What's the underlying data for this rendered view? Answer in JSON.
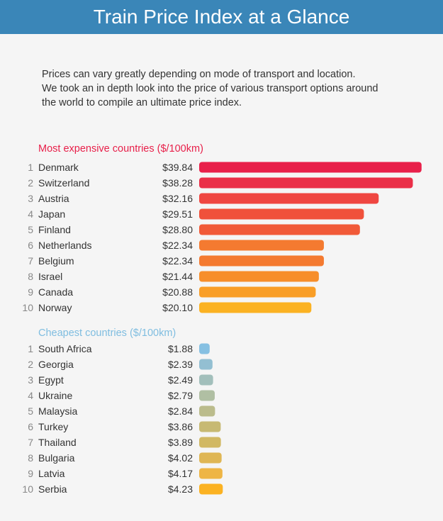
{
  "header": {
    "title": "Train Price Index at a Glance"
  },
  "intro": {
    "line1": "Prices can vary greatly depending on mode of transport and location.",
    "line2": "We took an in depth look into the price of various transport options around",
    "line3": "the world to compile an ultimate price index."
  },
  "chart_data": [
    {
      "type": "bar",
      "orientation": "horizontal",
      "title": "Most expensive countries ($/100km)",
      "title_color": "#e8204a",
      "categories": [
        "Denmark",
        "Switzerland",
        "Austria",
        "Japan",
        "Finland",
        "Netherlands",
        "Belgium",
        "Israel",
        "Canada",
        "Norway"
      ],
      "ranks": [
        "1",
        "2",
        "3",
        "4",
        "5",
        "6",
        "7",
        "8",
        "9",
        "10"
      ],
      "values": [
        39.84,
        38.28,
        32.16,
        29.51,
        28.8,
        22.34,
        22.34,
        21.44,
        20.88,
        20.1
      ],
      "labels": [
        "$39.84",
        "$38.28",
        "$32.16",
        "$29.51",
        "$28.80",
        "$22.34",
        "$22.34",
        "$21.44",
        "$20.88",
        "$20.10"
      ],
      "colors": [
        "#e8204a",
        "#ea2f48",
        "#ef4641",
        "#f0513b",
        "#f15a38",
        "#f47a30",
        "#f47a30",
        "#f78e2a",
        "#f99e27",
        "#fbb222"
      ],
      "xlim": [
        0,
        40
      ]
    },
    {
      "type": "bar",
      "orientation": "horizontal",
      "title": "Cheapest countries ($/100km)",
      "title_color": "#7fbde0",
      "categories": [
        "South Africa",
        "Georgia",
        "Egypt",
        "Ukraine",
        "Malaysia",
        "Turkey",
        "Thailand",
        "Bulgaria",
        "Latvia",
        "Serbia"
      ],
      "ranks": [
        "1",
        "2",
        "3",
        "4",
        "5",
        "6",
        "7",
        "8",
        "9",
        "10"
      ],
      "values": [
        1.88,
        2.39,
        2.49,
        2.79,
        2.84,
        3.86,
        3.89,
        4.02,
        4.17,
        4.23
      ],
      "labels": [
        "$1.88",
        "$2.39",
        "$2.49",
        "$2.79",
        "$2.84",
        "$3.86",
        "$3.89",
        "$4.02",
        "$4.17",
        "$4.23"
      ],
      "colors": [
        "#86c0e2",
        "#93bfd2",
        "#a2bfbb",
        "#b0bfa3",
        "#bbbc8c",
        "#c7b973",
        "#d1b863",
        "#dfb654",
        "#eeb545",
        "#fbb222"
      ],
      "xlim": [
        0,
        40
      ]
    }
  ]
}
